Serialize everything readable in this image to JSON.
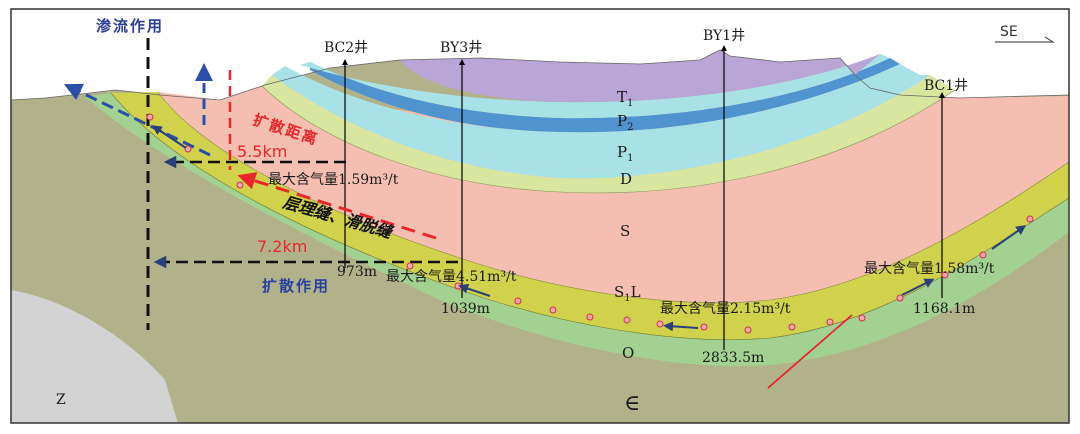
{
  "colors": {
    "surface_ground": "#b1b18a",
    "basement_Z": "#d3d3d3",
    "ordovician_O": "#a3d191",
    "silurian_longmaxi_S1L": "#cfd24a",
    "silurian_S": "#f4bfb1",
    "devonian_D": "#d9e6a0",
    "permian_P1": "#a9e2e6",
    "permian_P2": "#4f94cf",
    "triassic_T1": "#b9a5d6",
    "frame_border": "#333333",
    "leak_blue": "#2b4fa8",
    "red_accent": "#e8272c",
    "dot_fill": "#f6a7b0",
    "dot_stroke": "#d6314a"
  },
  "orientation": {
    "label": "SE"
  },
  "wells": [
    {
      "name": "BC2井",
      "depth": "973m"
    },
    {
      "name": "BY3井",
      "depth": "1039m"
    },
    {
      "name": "BY1井",
      "depth": "2833.5m"
    },
    {
      "name": "BC1井",
      "depth": "1168.1m"
    }
  ],
  "formations": {
    "T1": {
      "main": "T",
      "sub": "1"
    },
    "P2": {
      "main": "P",
      "sub": "2"
    },
    "P1": {
      "main": "P",
      "sub": "1"
    },
    "D": "D",
    "S": "S",
    "S1L": {
      "main": "S",
      "sub": "1",
      "tail": "L"
    },
    "O": "O",
    "Z": "Z",
    "Cambrian": "∈"
  },
  "annotations": {
    "seepage": "渗流作用",
    "diffusion_distance": "扩散距离",
    "diffusion_action": "扩散作用",
    "bedding_detachment": "层理缝、滑脱缝",
    "dist_5_5": "5.5km",
    "dist_7_2": "7.2km"
  },
  "gas_contents": [
    "最大含气量1.59m³/t",
    "最大含气量4.51m³/t",
    "最大含气量2.15m³/t",
    "最大含气量1.58m³/t"
  ]
}
